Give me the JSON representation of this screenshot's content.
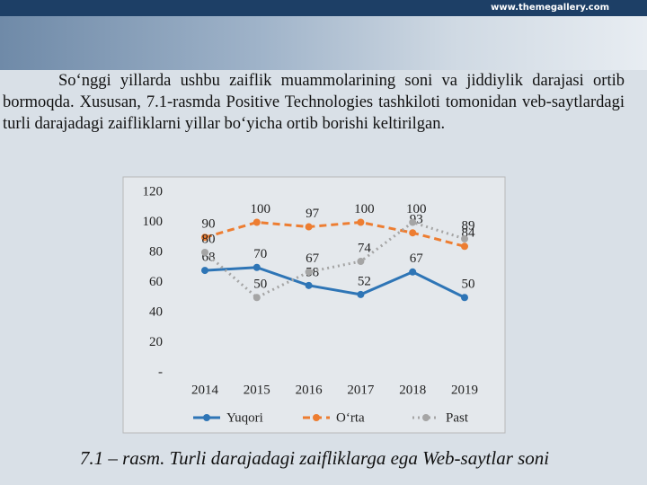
{
  "header": {
    "url": "www.themegallery.com"
  },
  "paragraph": "So‘nggi yillarda ushbu zaiflik muammolarining soni va jiddiylik darajasi ortib bormoqda. Xususan, 7.1-rasmda Positive Technologies tashkiloti tomonidan veb-saytlardagi turli darajadagi zaifliklarni yillar bo‘yicha ortib borishi keltirilgan.",
  "caption": "7.1 – rasm. Turli darajadagi zaifliklarga ega Web-saytlar soni",
  "chart_data": {
    "type": "line",
    "categories": [
      "2014",
      "2015",
      "2016",
      "2017",
      "2018",
      "2019"
    ],
    "series": [
      {
        "name": "Yuqori",
        "color": "#2e75b6",
        "values": [
          68,
          70,
          58,
          52,
          67,
          50
        ]
      },
      {
        "name": "O‘rta",
        "color": "#ed7d31",
        "values": [
          90,
          100,
          97,
          100,
          93,
          84
        ]
      },
      {
        "name": "Past",
        "color": "#a5a5a5",
        "values": [
          80,
          50,
          67,
          74,
          100,
          89
        ]
      }
    ],
    "ylim": [
      0,
      120
    ],
    "yticks": [
      {
        "value": 0,
        "label": "-"
      },
      20,
      40,
      60,
      80,
      100,
      120
    ],
    "grid": false,
    "legend": "bottom"
  }
}
